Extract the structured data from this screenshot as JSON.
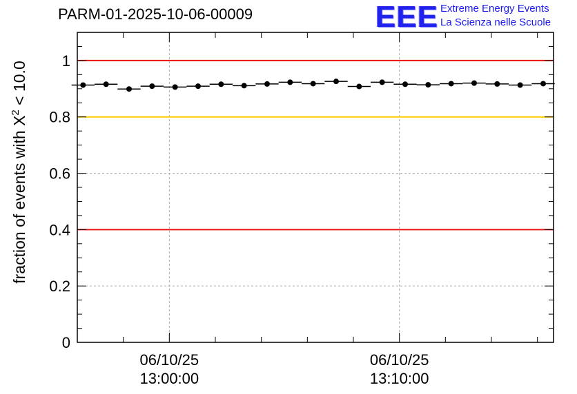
{
  "title": "PARM-01-2025-10-06-00009",
  "logo": {
    "mark": "EEE",
    "line1": "Extreme Energy Events",
    "line2": "La Scienza nelle Scuole"
  },
  "chart_data": {
    "type": "scatter",
    "title": "PARM-01-2025-10-06-00009",
    "ylabel_prefix": "fraction of events with ",
    "ylabel_symbol": "X",
    "ylabel_sup": "2",
    "ylabel_suffix": " < 10.0",
    "xlabel": "",
    "ylim": [
      0,
      1.1
    ],
    "xlim_minutes": [
      -4.0,
      16.7
    ],
    "x_unit": "minutes after 06/10/25 13:00:00",
    "yticks": [
      0,
      0.2,
      0.4,
      0.6,
      0.8,
      1
    ],
    "ytick_labels": [
      "0",
      "0.2",
      "0.4",
      "0.6",
      "0.8",
      "1"
    ],
    "xticks": [
      {
        "minute": 0,
        "date": "06/10/25",
        "time": "13:00:00"
      },
      {
        "minute": 10,
        "date": "06/10/25",
        "time": "13:10:00"
      }
    ],
    "grid": true,
    "reference_lines": [
      {
        "y": 1.0,
        "color": "#ee1111"
      },
      {
        "y": 0.8,
        "color": "#ffcc00"
      },
      {
        "y": 0.4,
        "color": "#ee1111"
      }
    ],
    "bin_width_minutes": 1.0,
    "series": [
      {
        "name": "fraction",
        "x": [
          -3.75,
          -2.75,
          -1.75,
          -0.75,
          0.25,
          1.25,
          2.25,
          3.25,
          4.25,
          5.25,
          6.25,
          7.25,
          8.25,
          9.25,
          10.25,
          11.25,
          12.25,
          13.25,
          14.25,
          15.25,
          16.25
        ],
        "y": [
          0.913,
          0.916,
          0.899,
          0.909,
          0.906,
          0.909,
          0.916,
          0.911,
          0.917,
          0.923,
          0.918,
          0.926,
          0.908,
          0.923,
          0.916,
          0.914,
          0.918,
          0.92,
          0.917,
          0.913,
          0.918
        ],
        "color": "#000000"
      }
    ]
  }
}
